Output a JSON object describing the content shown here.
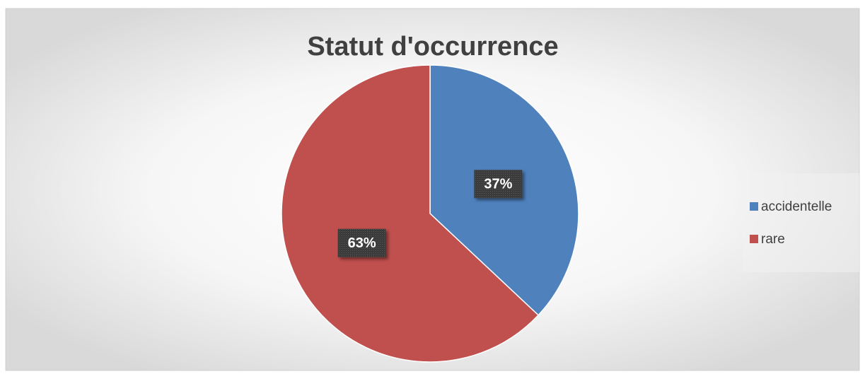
{
  "chart_data": {
    "type": "pie",
    "title": "Statut d'occurrence",
    "categories": [
      "accidentelle",
      "rare"
    ],
    "values": [
      37,
      63
    ],
    "value_labels": [
      "37%",
      "63%"
    ],
    "colors": [
      "#4f81bd",
      "#c0504d"
    ],
    "legend": "right"
  }
}
